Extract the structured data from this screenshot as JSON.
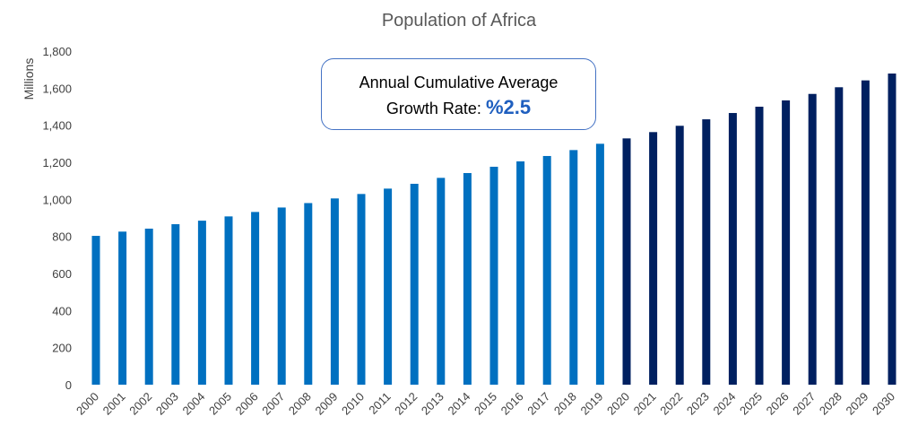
{
  "chart_data": {
    "type": "bar",
    "title": "Population of Africa",
    "ylabel": "Millions",
    "xlabel": "",
    "ylim": [
      0,
      1800
    ],
    "yticks": [
      0,
      200,
      400,
      600,
      800,
      1000,
      1200,
      1400,
      1600,
      1800
    ],
    "ytick_labels": [
      "0",
      "200",
      "400",
      "600",
      "800",
      "1,000",
      "1,200",
      "1,400",
      "1,600",
      "1,800"
    ],
    "grid": false,
    "categories": [
      "2000",
      "2001",
      "2002",
      "2003",
      "2004",
      "2005",
      "2006",
      "2007",
      "2008",
      "2009",
      "2010",
      "2011",
      "2012",
      "2013",
      "2014",
      "2015",
      "2016",
      "2017",
      "2018",
      "2019",
      "2020",
      "2021",
      "2022",
      "2023",
      "2024",
      "2025",
      "2026",
      "2027",
      "2028",
      "2029",
      "2030"
    ],
    "values": [
      803,
      826,
      842,
      866,
      885,
      908,
      932,
      956,
      980,
      1005,
      1029,
      1058,
      1084,
      1116,
      1142,
      1176,
      1205,
      1234,
      1266,
      1300,
      1329,
      1363,
      1397,
      1432,
      1466,
      1500,
      1534,
      1569,
      1605,
      1642,
      1679
    ],
    "colors": {
      "historical": "#0070C0",
      "projected": "#002060"
    },
    "projection_start": "2020",
    "annotation": {
      "line1": "Annual Cumulative Average",
      "line2": "Growth Rate:",
      "rate": "%2.5"
    }
  }
}
